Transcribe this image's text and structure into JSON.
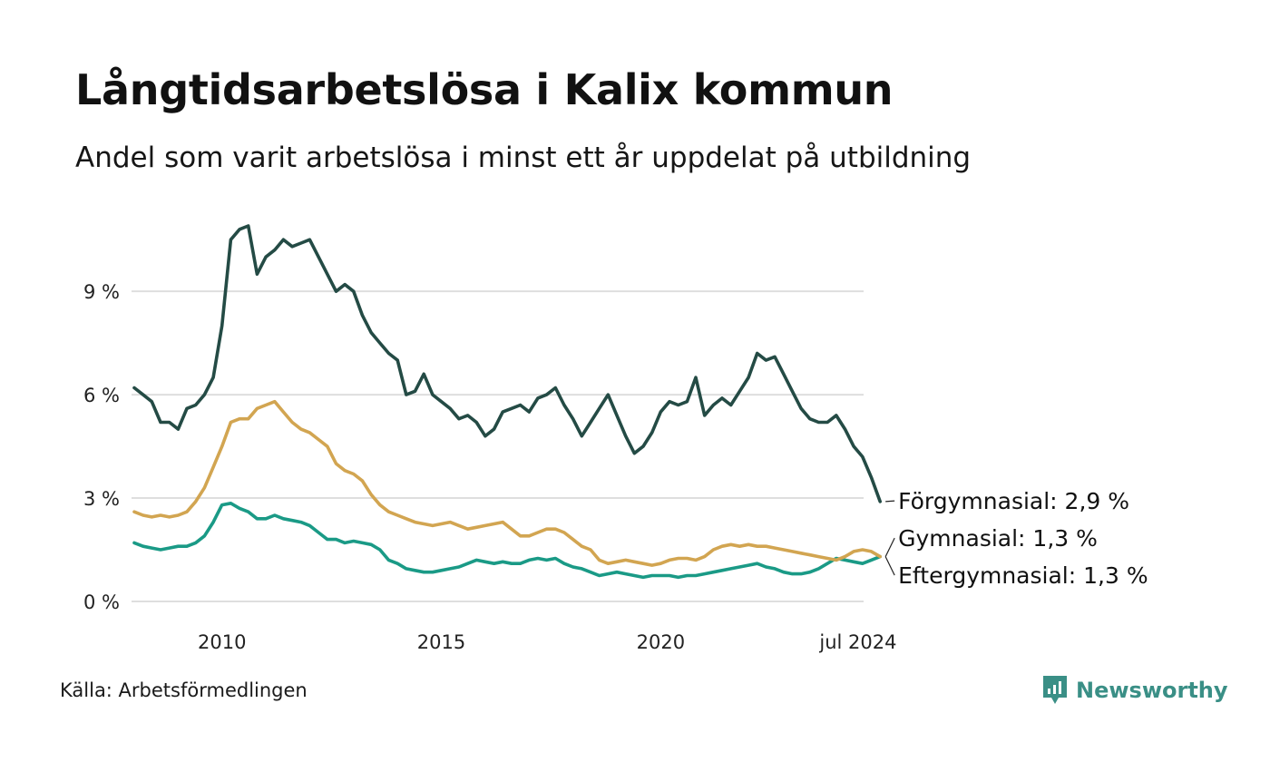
{
  "title": "Långtidsarbetslösa i Kalix kommun",
  "subtitle": "Andel som varit arbetslösa i minst ett år uppdelat på utbildning",
  "source": "Källa: Arbetsförmedlingen",
  "brand": {
    "name": "Newsworthy",
    "logo_icon": "newsworthy-logo-icon"
  },
  "colors": {
    "forgymnasial": "#244b45",
    "gymnasial": "#1a9a86",
    "eftergymnasial": "#d2a551",
    "grid": "#dedede"
  },
  "chart_data": {
    "type": "line",
    "title": "Långtidsarbetslösa i Kalix kommun",
    "xlabel": "",
    "ylabel": "",
    "x_start": 2008.0,
    "x_step": 0.2,
    "xlim": [
      2008.0,
      2024.5833
    ],
    "ylim": [
      0,
      11.4
    ],
    "y_ticks": [
      0,
      3,
      6,
      9
    ],
    "y_tick_labels": [
      "0 %",
      "3 %",
      "6 %",
      "9 %"
    ],
    "x_ticks": [
      2010,
      2015,
      2020,
      2024.5
    ],
    "x_tick_labels": [
      "2010",
      "2015",
      "2020",
      "jul 2024"
    ],
    "series": [
      {
        "name": "Förgymnasial",
        "label": "Förgymnasial: 2,9 %",
        "color_key": "forgymnasial",
        "values": [
          6.2,
          6.0,
          5.8,
          5.2,
          5.2,
          5.0,
          5.6,
          5.7,
          6.0,
          6.5,
          8.0,
          10.5,
          10.8,
          10.9,
          9.5,
          10.0,
          10.2,
          10.5,
          10.3,
          10.4,
          10.5,
          10.0,
          9.5,
          9.0,
          9.2,
          9.0,
          8.3,
          7.8,
          7.5,
          7.2,
          7.0,
          6.0,
          6.1,
          6.6,
          6.0,
          5.8,
          5.6,
          5.3,
          5.4,
          5.2,
          4.8,
          5.0,
          5.5,
          5.6,
          5.7,
          5.5,
          5.9,
          6.0,
          6.2,
          5.7,
          5.3,
          4.8,
          5.2,
          5.6,
          6.0,
          5.4,
          4.8,
          4.3,
          4.5,
          4.9,
          5.5,
          5.8,
          5.7,
          5.8,
          6.5,
          5.4,
          5.7,
          5.9,
          5.7,
          6.1,
          6.5,
          7.2,
          7.0,
          7.1,
          6.6,
          6.1,
          5.6,
          5.3,
          5.2,
          5.2,
          5.4,
          5.0,
          4.5,
          4.2,
          3.6,
          2.9
        ]
      },
      {
        "name": "Gymnasial",
        "label": "Gymnasial: 1,3 %",
        "color_key": "gymnasial",
        "values": [
          1.7,
          1.6,
          1.55,
          1.5,
          1.55,
          1.6,
          1.6,
          1.7,
          1.9,
          2.3,
          2.8,
          2.85,
          2.7,
          2.6,
          2.4,
          2.4,
          2.5,
          2.4,
          2.35,
          2.3,
          2.2,
          2.0,
          1.8,
          1.8,
          1.7,
          1.75,
          1.7,
          1.65,
          1.5,
          1.2,
          1.1,
          0.95,
          0.9,
          0.85,
          0.85,
          0.9,
          0.95,
          1.0,
          1.1,
          1.2,
          1.15,
          1.1,
          1.15,
          1.1,
          1.1,
          1.2,
          1.25,
          1.2,
          1.25,
          1.1,
          1.0,
          0.95,
          0.85,
          0.75,
          0.8,
          0.85,
          0.8,
          0.75,
          0.7,
          0.75,
          0.75,
          0.75,
          0.7,
          0.75,
          0.75,
          0.8,
          0.85,
          0.9,
          0.95,
          1.0,
          1.05,
          1.1,
          1.0,
          0.95,
          0.85,
          0.8,
          0.8,
          0.85,
          0.95,
          1.1,
          1.25,
          1.2,
          1.15,
          1.1,
          1.2,
          1.3
        ]
      },
      {
        "name": "Eftergymnasial",
        "label": "Eftergymnasial: 1,3 %",
        "color_key": "eftergymnasial",
        "values": [
          2.6,
          2.5,
          2.45,
          2.5,
          2.45,
          2.5,
          2.6,
          2.9,
          3.3,
          3.9,
          4.5,
          5.2,
          5.3,
          5.3,
          5.6,
          5.7,
          5.8,
          5.5,
          5.2,
          5.0,
          4.9,
          4.7,
          4.5,
          4.0,
          3.8,
          3.7,
          3.5,
          3.1,
          2.8,
          2.6,
          2.5,
          2.4,
          2.3,
          2.25,
          2.2,
          2.25,
          2.3,
          2.2,
          2.1,
          2.15,
          2.2,
          2.25,
          2.3,
          2.1,
          1.9,
          1.9,
          2.0,
          2.1,
          2.1,
          2.0,
          1.8,
          1.6,
          1.5,
          1.2,
          1.1,
          1.15,
          1.2,
          1.15,
          1.1,
          1.05,
          1.1,
          1.2,
          1.25,
          1.25,
          1.2,
          1.3,
          1.5,
          1.6,
          1.65,
          1.6,
          1.65,
          1.6,
          1.6,
          1.55,
          1.5,
          1.45,
          1.4,
          1.35,
          1.3,
          1.25,
          1.2,
          1.3,
          1.45,
          1.5,
          1.45,
          1.3
        ]
      }
    ]
  }
}
